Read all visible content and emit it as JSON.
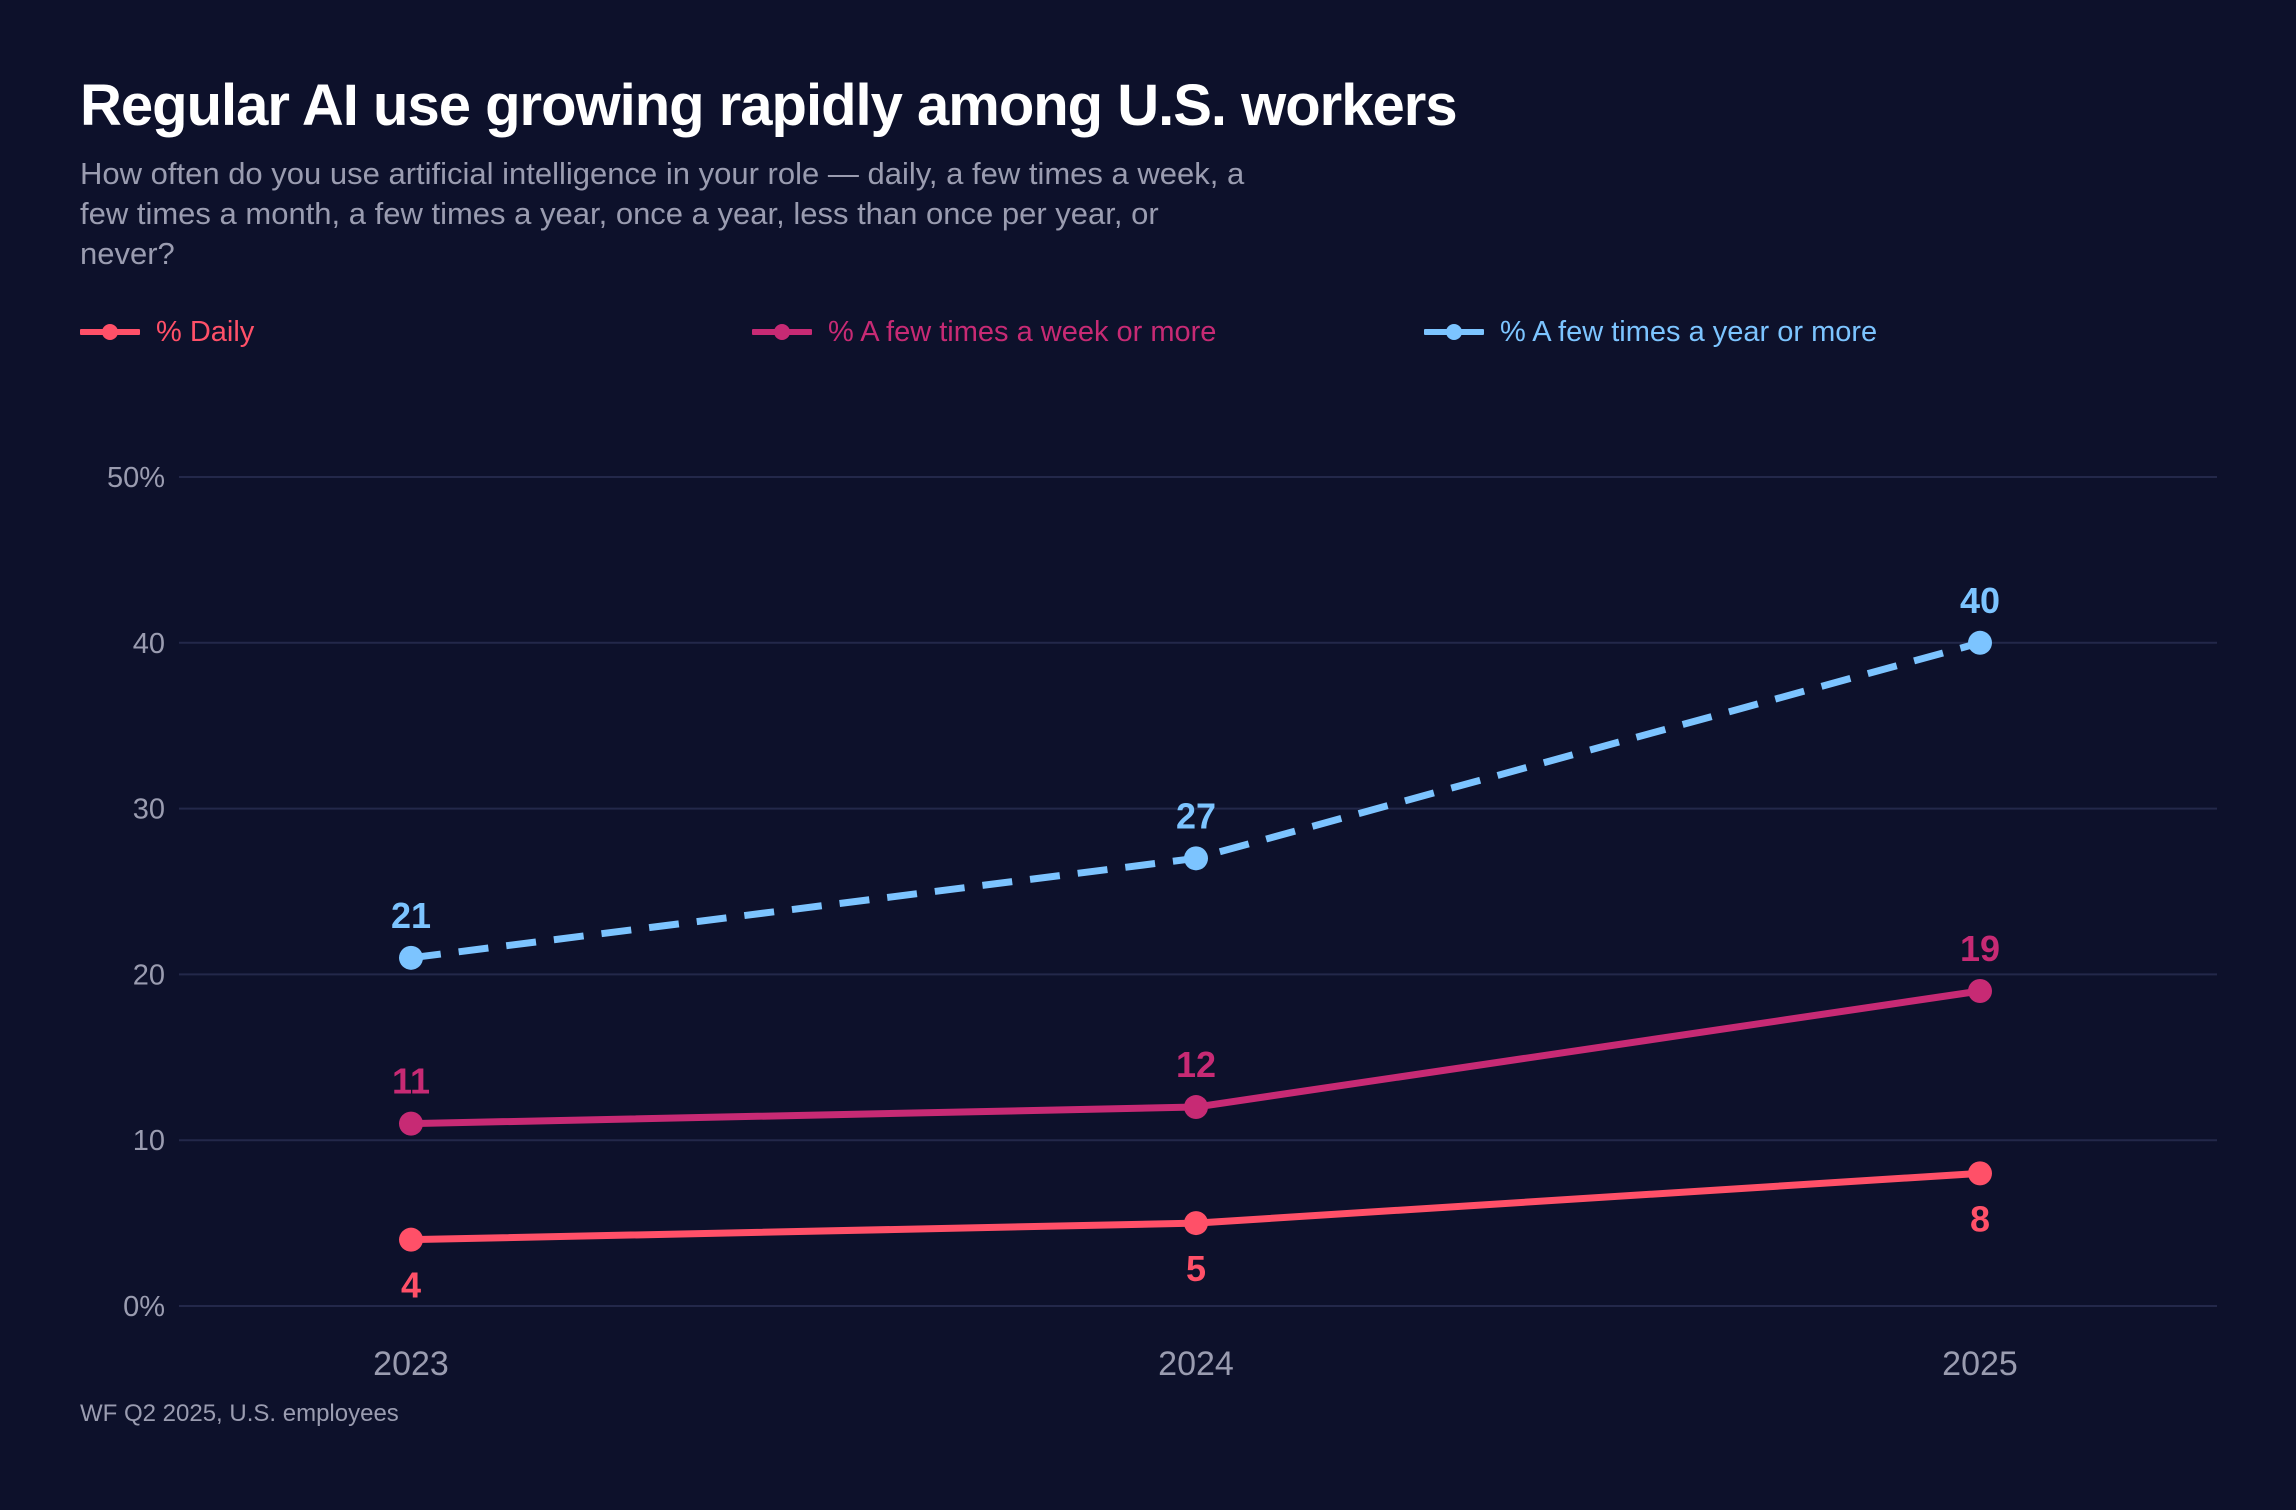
{
  "header": {
    "title": "Regular AI use growing rapidly among U.S. workers",
    "subtitle": "How often do you use artificial intelligence in your role — daily, a few times a week, a few times a month, a few times a year, once a year, less than once per year, or never?"
  },
  "footer": {
    "source": "WF Q2 2025, U.S. employees"
  },
  "colors": {
    "background": "#0d112b",
    "gridline": "#23284a",
    "axis_text": "#9a9cb0",
    "daily": "#ff5068",
    "weekly": "#c72a74",
    "yearly": "#7cc4ff"
  },
  "legend": [
    {
      "label": "% Daily",
      "color": "#ff5068",
      "dashed": false
    },
    {
      "label": "% A few times a week or more",
      "color": "#c72a74",
      "dashed": false
    },
    {
      "label": "% A few times a year or more",
      "color": "#7cc4ff",
      "dashed": true
    }
  ],
  "chart_data": {
    "type": "line",
    "title": "Regular AI use growing rapidly among U.S. workers",
    "xlabel": "",
    "ylabel": "",
    "x": [
      "2023",
      "2024",
      "2025"
    ],
    "ylim": [
      0,
      50
    ],
    "yticks": [
      0,
      10,
      20,
      30,
      40,
      50
    ],
    "ytick_labels": [
      "0%",
      "10",
      "20",
      "30",
      "40",
      "50%"
    ],
    "grid": true,
    "legend_position": "top-left",
    "series": [
      {
        "name": "% A few times a year or more",
        "values": [
          21,
          27,
          40
        ],
        "color": "#7cc4ff",
        "dashed": true,
        "label_position": "above"
      },
      {
        "name": "% A few times a week or more",
        "values": [
          11,
          12,
          19
        ],
        "color": "#c72a74",
        "dashed": false,
        "label_position": "above"
      },
      {
        "name": "% Daily",
        "values": [
          4,
          5,
          8
        ],
        "color": "#ff5068",
        "dashed": false,
        "label_position": "below"
      }
    ]
  }
}
